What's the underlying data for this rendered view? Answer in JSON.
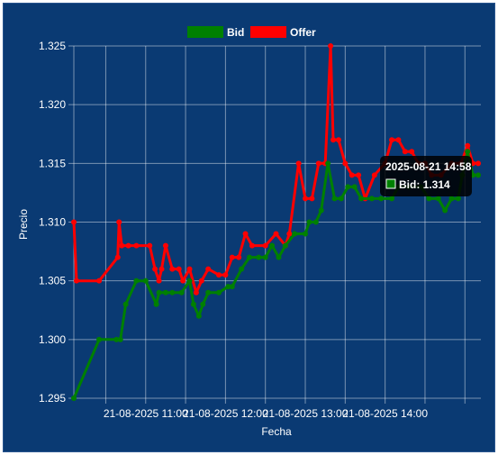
{
  "chart_data": {
    "type": "line",
    "xlabel": "Fecha",
    "ylabel": "Precio",
    "ylim": [
      1.295,
      1.325
    ],
    "yticks": [
      "1.295",
      "1.300",
      "1.305",
      "1.310",
      "1.315",
      "1.320",
      "1.325"
    ],
    "xticks": [
      "21-08-2025 11:00",
      "21-08-2025 12:00",
      "21-08-2025 13:00",
      "21-08-2025 14:00"
    ],
    "xlim": [
      "10:06",
      "15:12"
    ],
    "grid": true,
    "legend_position": "top",
    "series": [
      {
        "name": "Bid",
        "color": "#008000",
        "points": [
          [
            "10:06",
            1.295
          ],
          [
            "10:25",
            1.3
          ],
          [
            "10:38",
            1.3
          ],
          [
            "10:41",
            1.3
          ],
          [
            "10:45",
            1.303
          ],
          [
            "10:53",
            1.305
          ],
          [
            "11:00",
            1.305
          ],
          [
            "11:08",
            1.303
          ],
          [
            "11:10",
            1.304
          ],
          [
            "11:15",
            1.304
          ],
          [
            "11:20",
            1.304
          ],
          [
            "11:27",
            1.304
          ],
          [
            "11:33",
            1.305
          ],
          [
            "11:36",
            1.303
          ],
          [
            "11:40",
            1.302
          ],
          [
            "11:43",
            1.303
          ],
          [
            "11:47",
            1.304
          ],
          [
            "11:55",
            1.304
          ],
          [
            "12:02",
            1.3045
          ],
          [
            "12:05",
            1.3045
          ],
          [
            "12:12",
            1.306
          ],
          [
            "12:18",
            1.307
          ],
          [
            "12:25",
            1.307
          ],
          [
            "12:30",
            1.307
          ],
          [
            "12:35",
            1.308
          ],
          [
            "12:40",
            1.307
          ],
          [
            "12:45",
            1.308
          ],
          [
            "12:52",
            1.309
          ],
          [
            "13:00",
            1.309
          ],
          [
            "13:03",
            1.31
          ],
          [
            "13:08",
            1.31
          ],
          [
            "13:12",
            1.311
          ],
          [
            "13:17",
            1.315
          ],
          [
            "13:22",
            1.312
          ],
          [
            "13:27",
            1.312
          ],
          [
            "13:32",
            1.313
          ],
          [
            "13:37",
            1.313
          ],
          [
            "13:42",
            1.312
          ],
          [
            "13:50",
            1.312
          ],
          [
            "13:57",
            1.312
          ],
          [
            "14:05",
            1.312
          ],
          [
            "14:10",
            1.313
          ],
          [
            "14:18",
            1.313
          ],
          [
            "14:27",
            1.313
          ],
          [
            "14:33",
            1.312
          ],
          [
            "14:40",
            1.312
          ],
          [
            "14:45",
            1.311
          ],
          [
            "14:50",
            1.312
          ],
          [
            "14:55",
            1.312
          ],
          [
            "14:58",
            1.314
          ],
          [
            "15:02",
            1.316
          ],
          [
            "15:06",
            1.314
          ],
          [
            "15:10",
            1.314
          ]
        ]
      },
      {
        "name": "Offer",
        "color": "#ff0000",
        "points": [
          [
            "10:06",
            1.31
          ],
          [
            "10:08",
            1.305
          ],
          [
            "10:25",
            1.305
          ],
          [
            "10:39",
            1.307
          ],
          [
            "10:40",
            1.31
          ],
          [
            "10:42",
            1.308
          ],
          [
            "10:47",
            1.308
          ],
          [
            "10:53",
            1.308
          ],
          [
            "11:03",
            1.308
          ],
          [
            "11:07",
            1.306
          ],
          [
            "11:10",
            1.305
          ],
          [
            "11:12",
            1.306
          ],
          [
            "11:15",
            1.308
          ],
          [
            "11:20",
            1.306
          ],
          [
            "11:25",
            1.306
          ],
          [
            "11:28",
            1.305
          ],
          [
            "11:33",
            1.306
          ],
          [
            "11:38",
            1.304
          ],
          [
            "11:42",
            1.305
          ],
          [
            "11:47",
            1.306
          ],
          [
            "11:55",
            1.3055
          ],
          [
            "12:00",
            1.3055
          ],
          [
            "12:05",
            1.307
          ],
          [
            "12:10",
            1.307
          ],
          [
            "12:15",
            1.309
          ],
          [
            "12:20",
            1.308
          ],
          [
            "12:30",
            1.308
          ],
          [
            "12:38",
            1.309
          ],
          [
            "12:45",
            1.308
          ],
          [
            "12:48",
            1.309
          ],
          [
            "12:55",
            1.315
          ],
          [
            "13:00",
            1.312
          ],
          [
            "13:05",
            1.312
          ],
          [
            "13:10",
            1.315
          ],
          [
            "13:15",
            1.315
          ],
          [
            "13:19",
            1.325
          ],
          [
            "13:21",
            1.317
          ],
          [
            "13:25",
            1.317
          ],
          [
            "13:30",
            1.315
          ],
          [
            "13:35",
            1.314
          ],
          [
            "13:40",
            1.314
          ],
          [
            "13:45",
            1.312
          ],
          [
            "13:52",
            1.314
          ],
          [
            "14:00",
            1.315
          ],
          [
            "14:05",
            1.317
          ],
          [
            "14:10",
            1.317
          ],
          [
            "14:15",
            1.316
          ],
          [
            "14:20",
            1.316
          ],
          [
            "14:25",
            1.315
          ],
          [
            "14:30",
            1.315
          ],
          [
            "14:35",
            1.314
          ],
          [
            "14:42",
            1.314
          ],
          [
            "14:50",
            1.315
          ],
          [
            "14:57",
            1.315
          ],
          [
            "15:02",
            1.3165
          ],
          [
            "15:06",
            1.315
          ],
          [
            "15:10",
            1.315
          ]
        ]
      }
    ],
    "tooltip": {
      "title": "2025-08-21 14:58",
      "label": "Bid: 1.314",
      "color": "#008000"
    }
  }
}
